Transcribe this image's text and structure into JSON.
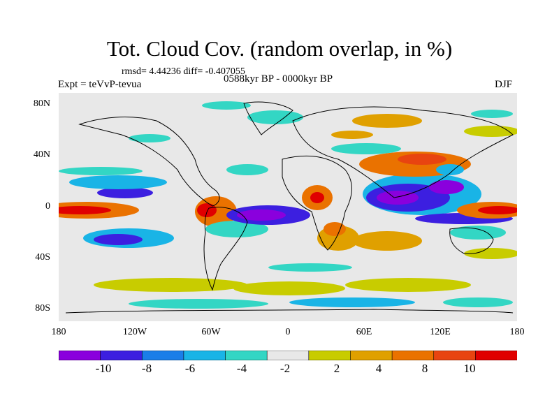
{
  "title": "Tot. Cloud Cov. (random overlap, in %)",
  "stats": "rmsd= 4.44236  diff= -0.407055",
  "expt": "Expt = teVvP-tevua",
  "period": "0588kyr BP - 0000kyr BP",
  "season": "DJF",
  "map": {
    "lat_ticks": [
      "80N",
      "40N",
      "0",
      "40S",
      "80S"
    ],
    "lon_ticks": [
      "180",
      "120W",
      "60W",
      "0",
      "60E",
      "120E",
      "180"
    ],
    "background_color": "#e8e8e8"
  },
  "colorbar": {
    "colors": [
      "#8a00dd",
      "#3c1fe0",
      "#1a7ee8",
      "#19b4e6",
      "#33d6c4",
      "#e8e8e8",
      "#c8cc00",
      "#e0a000",
      "#ea7200",
      "#e84410",
      "#e00000"
    ],
    "labels": [
      "-10",
      "-8",
      "-6",
      "-4",
      "-2",
      "2",
      "4",
      "8",
      "10"
    ]
  }
}
